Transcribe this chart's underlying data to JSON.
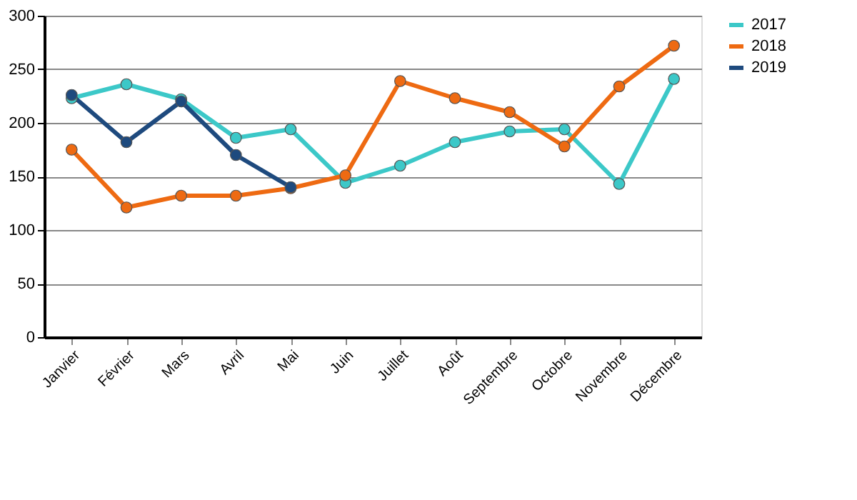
{
  "chart_data": {
    "type": "line",
    "categories": [
      "Janvier",
      "Février",
      "Mars",
      "Avril",
      "Mai",
      "Juin",
      "Juillet",
      "Août",
      "Septembre",
      "Octobre",
      "Novembre",
      "Décembre"
    ],
    "series": [
      {
        "name": "2017",
        "color": "#3cc8c8",
        "values": [
          223,
          236,
          222,
          186,
          194,
          144,
          160,
          182,
          192,
          194,
          143,
          241
        ]
      },
      {
        "name": "2018",
        "color": "#ee6a12",
        "values": [
          175,
          121,
          132,
          132,
          139,
          151,
          239,
          223,
          210,
          178,
          234,
          272
        ]
      },
      {
        "name": "2019",
        "color": "#1e4a7e",
        "values": [
          226,
          182,
          220,
          170,
          140,
          null,
          null,
          null,
          null,
          null,
          null,
          null
        ]
      }
    ],
    "ylim": [
      0,
      300
    ],
    "yticks": [
      0,
      50,
      100,
      150,
      200,
      250,
      300
    ],
    "grid": "y",
    "legend": "right",
    "marker": "circle",
    "line_style": "solid"
  }
}
